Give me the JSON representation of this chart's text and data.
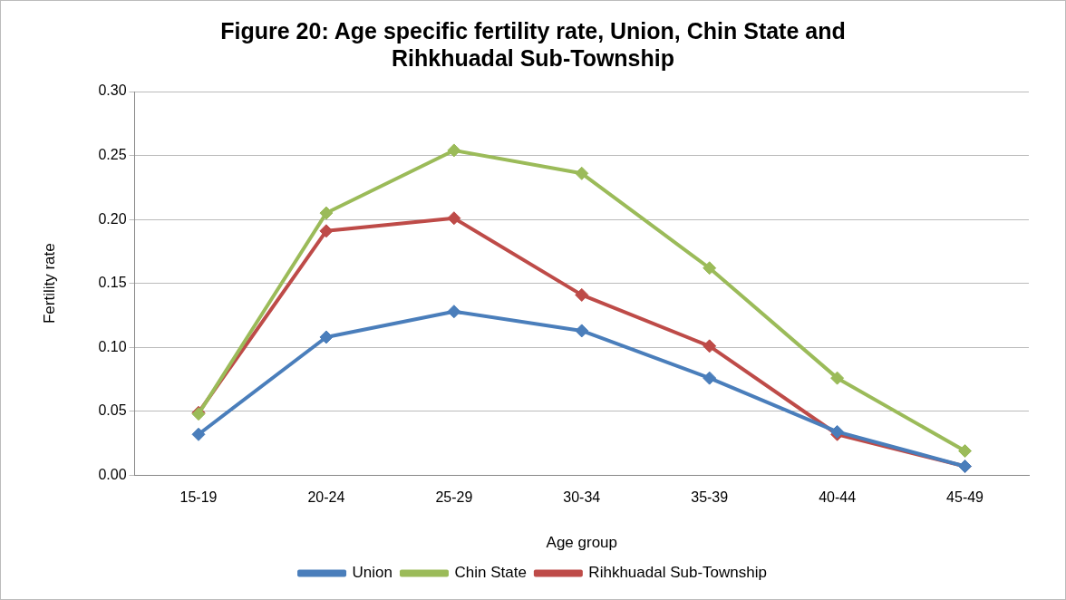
{
  "chart_data": {
    "type": "line",
    "title": "Figure 20: Age specific fertility rate, Union, Chin State and Rihkhuadal Sub-Township",
    "xlabel": "Age group",
    "ylabel": "Fertility rate",
    "categories": [
      "15-19",
      "20-24",
      "25-29",
      "30-34",
      "35-39",
      "40-44",
      "45-49"
    ],
    "series": [
      {
        "name": "Union",
        "color": "#4a7ebb",
        "values": [
          0.032,
          0.108,
          0.128,
          0.113,
          0.076,
          0.034,
          0.007
        ]
      },
      {
        "name": "Chin State",
        "color": "#9bbb59",
        "values": [
          0.048,
          0.205,
          0.254,
          0.236,
          0.162,
          0.076,
          0.019
        ]
      },
      {
        "name": "Rihkhuadal Sub-Township",
        "color": "#be4b48",
        "values": [
          0.049,
          0.191,
          0.201,
          0.141,
          0.101,
          0.032,
          0.007
        ]
      }
    ],
    "ylim": [
      0,
      0.3
    ],
    "yticks": [
      {
        "value": 0,
        "label": "0.00"
      },
      {
        "value": 0.05,
        "label": "0.05"
      },
      {
        "value": 0.1,
        "label": "0.10"
      },
      {
        "value": 0.15,
        "label": "0.15"
      },
      {
        "value": 0.2,
        "label": "0.20"
      },
      {
        "value": 0.25,
        "label": "0.25"
      },
      {
        "value": 0.3,
        "label": "0.30"
      }
    ],
    "grid": "y",
    "legend": "bottom",
    "marker": "diamond",
    "line_style": "solid"
  }
}
